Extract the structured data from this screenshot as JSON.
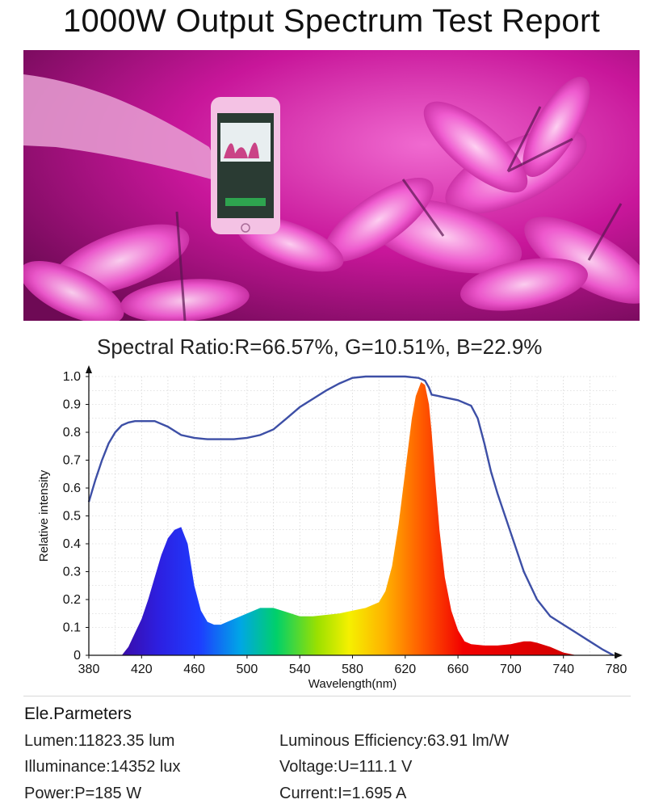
{
  "title": "1000W Output Spectrum Test Report",
  "spectral_ratio": "Spectral Ratio:R=66.57%, G=10.51%, B=22.9%",
  "chart_data": {
    "type": "area",
    "xlabel": "Wavelength(nm)",
    "ylabel": "Relative intensity",
    "xlim": [
      380,
      780
    ],
    "ylim": [
      0,
      1.0
    ],
    "x_ticks": [
      380,
      420,
      460,
      500,
      540,
      580,
      620,
      660,
      700,
      740,
      780
    ],
    "y_ticks": [
      0,
      0.1,
      0.2,
      0.3,
      0.4,
      0.5,
      0.6,
      0.7,
      0.8,
      0.9,
      1.0
    ],
    "y_tick_labels": [
      "0",
      "0.1",
      "0.2",
      "0.3",
      "0.4",
      "0.5",
      "0.6",
      "0.7",
      "0.8",
      "0.9",
      "1.0"
    ],
    "grid": true,
    "series": [
      {
        "kind": "area-spectrum",
        "x": [
          405,
          410,
          415,
          420,
          425,
          430,
          435,
          440,
          445,
          450,
          455,
          460,
          465,
          470,
          475,
          480,
          490,
          500,
          510,
          520,
          530,
          540,
          550,
          560,
          570,
          580,
          590,
          600,
          605,
          610,
          615,
          620,
          625,
          628,
          632,
          635,
          638,
          640,
          643,
          646,
          650,
          655,
          660,
          665,
          670,
          680,
          690,
          700,
          710,
          715,
          720,
          730,
          740,
          750
        ],
        "y": [
          0.0,
          0.03,
          0.08,
          0.13,
          0.2,
          0.28,
          0.36,
          0.42,
          0.45,
          0.46,
          0.4,
          0.25,
          0.16,
          0.12,
          0.11,
          0.11,
          0.13,
          0.15,
          0.17,
          0.17,
          0.155,
          0.14,
          0.14,
          0.145,
          0.15,
          0.16,
          0.17,
          0.19,
          0.23,
          0.32,
          0.47,
          0.66,
          0.85,
          0.93,
          0.98,
          0.97,
          0.9,
          0.8,
          0.62,
          0.45,
          0.28,
          0.16,
          0.09,
          0.05,
          0.04,
          0.035,
          0.035,
          0.04,
          0.05,
          0.05,
          0.045,
          0.03,
          0.01,
          0.0
        ]
      },
      {
        "kind": "line",
        "color": "#3d4fa6",
        "x": [
          380,
          385,
          390,
          395,
          400,
          405,
          410,
          415,
          420,
          430,
          440,
          450,
          460,
          470,
          480,
          490,
          500,
          510,
          520,
          530,
          540,
          550,
          560,
          570,
          580,
          590,
          600,
          610,
          620,
          630,
          635,
          638,
          640,
          645,
          650,
          660,
          670,
          675,
          680,
          685,
          690,
          700,
          710,
          720,
          730,
          740,
          750,
          760,
          770,
          778
        ],
        "y": [
          0.55,
          0.63,
          0.7,
          0.76,
          0.8,
          0.825,
          0.835,
          0.84,
          0.84,
          0.84,
          0.82,
          0.79,
          0.78,
          0.775,
          0.775,
          0.775,
          0.78,
          0.79,
          0.81,
          0.85,
          0.89,
          0.92,
          0.95,
          0.975,
          0.995,
          1.0,
          1.0,
          1.0,
          1.0,
          0.995,
          0.985,
          0.96,
          0.935,
          0.93,
          0.925,
          0.915,
          0.895,
          0.85,
          0.76,
          0.66,
          0.58,
          0.44,
          0.3,
          0.2,
          0.14,
          0.11,
          0.08,
          0.05,
          0.02,
          0.0
        ]
      }
    ]
  },
  "params": {
    "heading": "Ele.Parmeters",
    "lumen": "Lumen:11823.35 lum",
    "illuminance": "Illuminance:14352 lux",
    "power": "Power:P=185 W",
    "efficiency": "Luminous Efficiency:63.91 lm/W",
    "voltage": "Voltage:U=111.1 V",
    "current": "Current:I=1.695 A"
  },
  "colors": {
    "magenta": "#d01aa0",
    "curve": "#3d4fa6",
    "phone_screen": "#2a3b33"
  }
}
